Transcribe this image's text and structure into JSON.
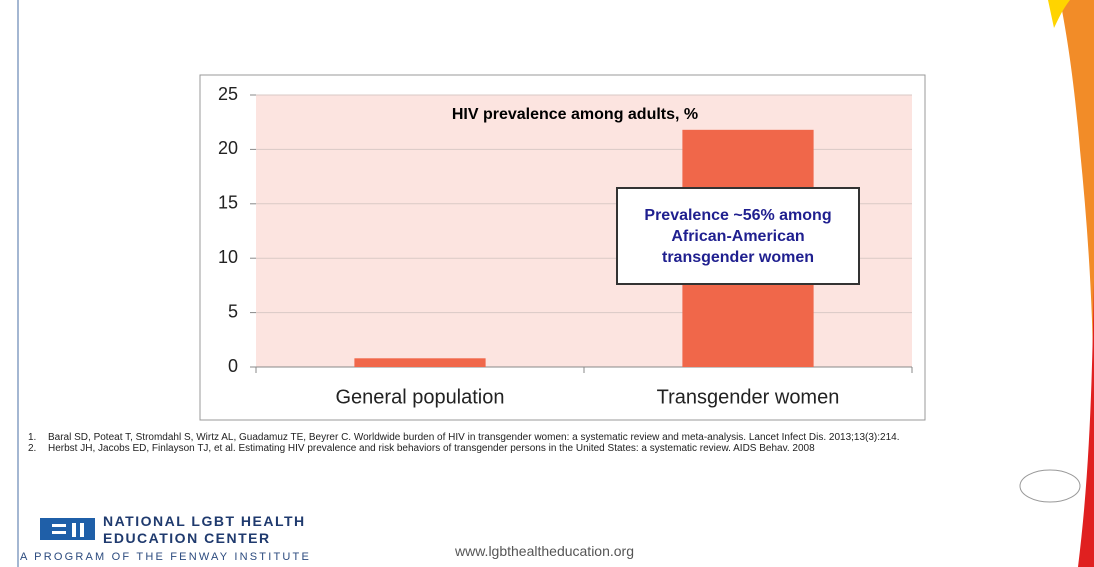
{
  "chart_data": {
    "type": "bar",
    "title": "HIV prevalence among adults, %",
    "categories": [
      "General population",
      "Transgender women"
    ],
    "values": [
      0.8,
      21.8
    ],
    "color": "#f0674a",
    "ylim": [
      0,
      25
    ],
    "yticks": [
      0,
      5,
      10,
      15,
      20,
      25
    ],
    "grid": true,
    "annotation": "Prevalence ~56% among African-American transgender women"
  },
  "references": [
    {
      "number": "1.",
      "text": "Baral SD, Poteat T, Stromdahl S, Wirtz AL, Guadamuz TE, Beyrer C. Worldwide burden of HIV in transgender women: a systematic review and meta-analysis. Lancet Infect Dis. 2013;13(3):214."
    },
    {
      "number": "2.",
      "text": "Herbst JH, Jacobs ED, Finlayson TJ, et al. Estimating HIV prevalence and risk behaviors of transgender persons in the United States: a systematic review. AIDS Behav. 2008"
    }
  ],
  "logo": {
    "line1": "NATIONAL LGBT HEALTH",
    "line2": "EDUCATION CENTER",
    "tagline": "A PROGRAM OF THE FENWAY INSTITUTE"
  },
  "url": "www.lgbthealtheducation.org"
}
